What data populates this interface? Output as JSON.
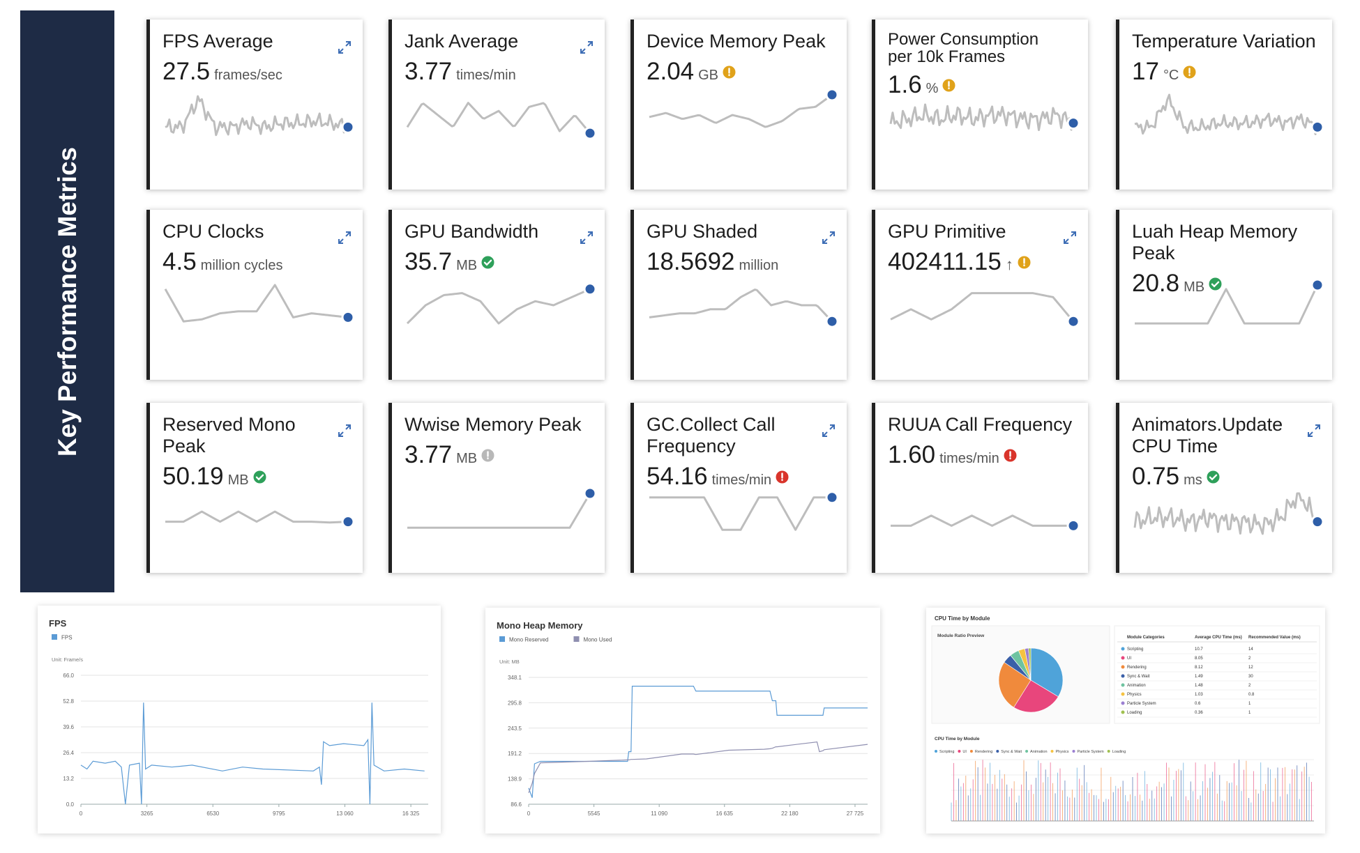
{
  "sidebar": {
    "title": "Key Performance Metrics"
  },
  "cards": [
    {
      "title": "FPS Average",
      "value": "27.5",
      "unit": "frames/sec",
      "expand": true
    },
    {
      "title": "Jank Average",
      "value": "3.77",
      "unit": "times/min",
      "expand": true
    },
    {
      "title": "Device Memory Peak",
      "value": "2.04",
      "unit": "GB",
      "status": "warning"
    },
    {
      "title": "Power Consumption per 10k Frames",
      "value": "1.6",
      "unit": "%",
      "status": "warning"
    },
    {
      "title": "Temperature Variation",
      "value": "17",
      "unit": "°C",
      "status": "warning"
    },
    {
      "title": "CPU Clocks",
      "value": "4.5",
      "unit": "million cycles",
      "expand": true
    },
    {
      "title": "GPU Bandwidth",
      "value": "35.7",
      "unit": "MB",
      "status": "ok",
      "expand": true
    },
    {
      "title": "GPU Shaded",
      "value": "18.5692",
      "unit": "million",
      "expand": true
    },
    {
      "title": "GPU Primitive",
      "value": "402411.15",
      "trend": "↑",
      "status": "warning",
      "expand": true
    },
    {
      "title": "Luah Heap Memory Peak",
      "value": "20.8",
      "unit": "MB",
      "status": "ok"
    },
    {
      "title": "Reserved Mono Peak",
      "value": "50.19",
      "unit": "MB",
      "status": "ok",
      "expand": true
    },
    {
      "title": "Wwise Memory Peak",
      "value": "3.77",
      "unit": "MB",
      "status": "info"
    },
    {
      "title": "GC.Collect Call Frequency",
      "value": "54.16",
      "unit": "times/min",
      "status": "error",
      "expand": true
    },
    {
      "title": "RUUA Call Frequency",
      "value": "1.60",
      "unit": "times/min",
      "status": "error"
    },
    {
      "title": "Animators.Update CPU Time",
      "value": "0.75",
      "unit": "ms",
      "status": "ok",
      "expand": true
    }
  ],
  "charts": [
    {
      "type": "line",
      "title": "FPS",
      "unit": "Unit: Frame/s",
      "x": [
        0,
        300,
        600,
        1200,
        1700,
        2000,
        2200,
        2400,
        2900,
        3000,
        3100,
        3200,
        3500,
        4500,
        5500,
        7000,
        8000,
        9000,
        11500,
        11800,
        11900,
        12000,
        12300,
        13000,
        14000,
        14200,
        14300,
        14400,
        14500,
        15000,
        16000,
        17000
      ],
      "series": [
        {
          "name": "FPS",
          "color": "#5b9bd5",
          "values": [
            20,
            18,
            22,
            21,
            22,
            19,
            0,
            20,
            21,
            0,
            52,
            18,
            20,
            19,
            20,
            17,
            19,
            18,
            17,
            19,
            10,
            32,
            30,
            31,
            30,
            33,
            0,
            52,
            20,
            17,
            18,
            17
          ]
        }
      ],
      "xlim": [
        0,
        17184
      ],
      "ylim": [
        0,
        66
      ],
      "xticks": [
        0,
        3265,
        6530,
        9795,
        {
          "value": 13060,
          "label": "13 060"
        },
        {
          "value": 16325,
          "label": "16 325"
        }
      ],
      "yticks": [
        {
          "value": 0,
          "label": "0.0"
        },
        13.2,
        26.4,
        39.6,
        52.8,
        {
          "value": 66,
          "label": "66.0"
        }
      ]
    },
    {
      "type": "line",
      "title": "Mono Heap Memory",
      "unit": "Unit: MB",
      "x": [
        0,
        300,
        500,
        1000,
        5000,
        8400,
        8500,
        8700,
        8800,
        10000,
        13000,
        14000,
        14200,
        17000,
        20000,
        20500,
        20700,
        21000,
        21100,
        24500,
        24700,
        25000,
        25100,
        28794
      ],
      "series": [
        {
          "name": "Mono Reserved",
          "color": "#5b9bd5",
          "values": [
            120,
            100,
            170,
            175,
            175,
            175,
            195,
            195,
            330,
            330,
            330,
            330,
            320,
            320,
            320,
            320,
            300,
            300,
            270,
            270,
            270,
            270,
            285,
            285
          ]
        },
        {
          "name": "Mono Used",
          "color": "#8f8fb0",
          "values": [
            110,
            130,
            150,
            172,
            175,
            178,
            178,
            179,
            179,
            180,
            190,
            190,
            189,
            198,
            200,
            201,
            202,
            205,
            205,
            215,
            195,
            197,
            199,
            210
          ]
        }
      ],
      "xlim": [
        0,
        28794
      ],
      "ylim": [
        86.6,
        348.1
      ],
      "xticks": [
        0,
        5545,
        {
          "value": 11090,
          "label": "11 090"
        },
        {
          "value": 16635,
          "label": "16 635"
        },
        {
          "value": 22180,
          "label": "22 180"
        },
        {
          "value": 27725,
          "label": "27 725"
        }
      ],
      "yticks": [
        86.6,
        138.9,
        191.2,
        243.5,
        295.8,
        348.1
      ]
    },
    {
      "type": "pie",
      "title": "CPU Time by Module",
      "subtitle": "Module Ratio Preview",
      "timeline_title": "CPU Time by Module",
      "columns": [
        "Module Categories",
        "Average CPU Time (ms)",
        "Recommended Value (ms)"
      ],
      "rows": [
        {
          "name": "Scripting",
          "color": "#4fa3d9",
          "average": 10.7,
          "recommended": 14
        },
        {
          "name": "UI",
          "color": "#e8467c",
          "average": 8.05,
          "recommended": 2
        },
        {
          "name": "Rendering",
          "color": "#f08a3c",
          "average": 8.12,
          "recommended": 12
        },
        {
          "name": "Sync & Wait",
          "color": "#3a5fa8",
          "average": 1.49,
          "recommended": 30
        },
        {
          "name": "Animation",
          "color": "#6fc3a0",
          "average": 1.48,
          "recommended": 2
        },
        {
          "name": "Physics",
          "color": "#f5c342",
          "average": 1.03,
          "recommended": 0.8
        },
        {
          "name": "Particle System",
          "color": "#9b7fd1",
          "average": 0.6,
          "recommended": 1
        },
        {
          "name": "Loading",
          "color": "#a0c050",
          "average": 0.36,
          "recommended": 1
        }
      ]
    }
  ]
}
